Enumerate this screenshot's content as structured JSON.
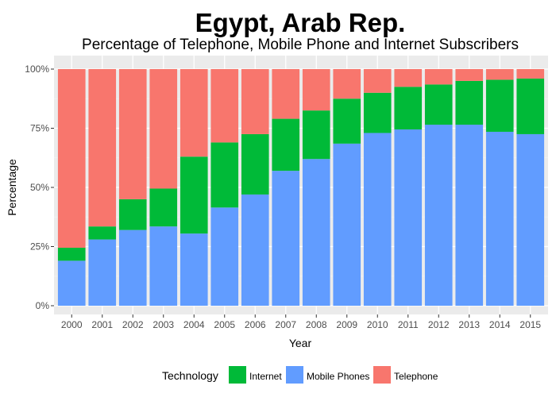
{
  "chart_data": {
    "type": "bar",
    "stacked": "percent",
    "title": "Egypt, Arab Rep.",
    "subtitle": "Percentage of Telephone, Mobile Phone and Internet Subscribers",
    "xlabel": "Year",
    "ylabel": "Percentage",
    "ylim": [
      0,
      100
    ],
    "y_ticks": [
      "0%",
      "25%",
      "50%",
      "75%",
      "100%"
    ],
    "categories": [
      "2000",
      "2001",
      "2002",
      "2003",
      "2004",
      "2005",
      "2006",
      "2007",
      "2008",
      "2009",
      "2010",
      "2011",
      "2012",
      "2013",
      "2014",
      "2015"
    ],
    "legend": {
      "title": "Technology",
      "placement": "bottom"
    },
    "grid": true,
    "series": [
      {
        "name": "Mobile Phones",
        "color": "#619CFF",
        "values": [
          19,
          28,
          32,
          33.5,
          30.5,
          41.5,
          47,
          57,
          62,
          68.5,
          73,
          74.5,
          76.5,
          76.5,
          73.5,
          72.5
        ]
      },
      {
        "name": "Internet",
        "color": "#00BA38",
        "values": [
          5.5,
          5.5,
          13,
          16,
          32.5,
          27.5,
          25.5,
          22,
          20.5,
          19,
          17,
          18,
          17,
          18.5,
          22,
          23.5
        ]
      },
      {
        "name": "Telephone",
        "color": "#F8766D",
        "values": [
          75.5,
          66.5,
          55,
          50.5,
          37,
          31,
          27.5,
          21,
          17.5,
          12.5,
          10,
          7.5,
          6.5,
          5,
          4.5,
          4
        ]
      }
    ],
    "legend_order": [
      "Internet",
      "Mobile Phones",
      "Telephone"
    ],
    "colors": {
      "panel_background": "#EBEBEB",
      "grid_major": "#FFFFFF",
      "grid_minor": "#F2F2F2",
      "tick_label": "#4D4D4D"
    }
  }
}
